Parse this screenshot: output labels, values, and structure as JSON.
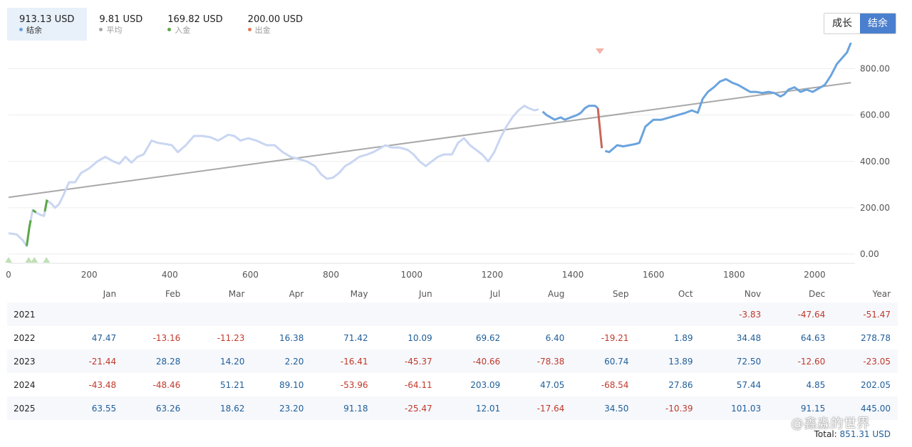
{
  "stats": [
    {
      "value": "913.13 USD",
      "label": "结余",
      "color": "#6aa3de"
    },
    {
      "value": "9.81 USD",
      "label": "平均",
      "color": "#a8a8a8"
    },
    {
      "value": "169.82 USD",
      "label": "入金",
      "color": "#5aa846"
    },
    {
      "value": "200.00 USD",
      "label": "出金",
      "color": "#e07a5a"
    }
  ],
  "toggle": {
    "growth_label": "成长",
    "balance_label": "结余"
  },
  "chart_data": {
    "type": "line",
    "xlim": [
      0,
      2100
    ],
    "ylim": [
      -40,
      900
    ],
    "x_ticks": [
      0,
      200,
      400,
      600,
      800,
      1000,
      1200,
      1400,
      1600,
      1800,
      2000
    ],
    "y_ticks": [
      0,
      200,
      400,
      600,
      800
    ],
    "y_tick_labels": [
      "0.00",
      "200.00",
      "400.00",
      "600.00",
      "800.00"
    ],
    "series": [
      {
        "name": "结余",
        "color": "#6aa3de",
        "faded_color": "#c9d6f2",
        "points": [
          [
            0,
            90
          ],
          [
            20,
            85
          ],
          [
            35,
            60
          ],
          [
            45,
            35
          ],
          [
            52,
            120
          ],
          [
            60,
            190
          ],
          [
            68,
            180
          ],
          [
            78,
            170
          ],
          [
            88,
            165
          ],
          [
            95,
            230
          ],
          [
            105,
            220
          ],
          [
            115,
            200
          ],
          [
            125,
            215
          ],
          [
            135,
            250
          ],
          [
            150,
            310
          ],
          [
            165,
            310
          ],
          [
            180,
            350
          ],
          [
            200,
            370
          ],
          [
            220,
            400
          ],
          [
            240,
            420
          ],
          [
            260,
            400
          ],
          [
            275,
            390
          ],
          [
            290,
            420
          ],
          [
            305,
            395
          ],
          [
            320,
            420
          ],
          [
            335,
            430
          ],
          [
            355,
            490
          ],
          [
            370,
            480
          ],
          [
            390,
            475
          ],
          [
            405,
            470
          ],
          [
            420,
            440
          ],
          [
            440,
            470
          ],
          [
            460,
            510
          ],
          [
            480,
            510
          ],
          [
            500,
            505
          ],
          [
            520,
            490
          ],
          [
            545,
            515
          ],
          [
            560,
            510
          ],
          [
            575,
            490
          ],
          [
            595,
            500
          ],
          [
            615,
            490
          ],
          [
            640,
            470
          ],
          [
            660,
            470
          ],
          [
            680,
            440
          ],
          [
            700,
            420
          ],
          [
            720,
            410
          ],
          [
            740,
            400
          ],
          [
            760,
            380
          ],
          [
            775,
            345
          ],
          [
            790,
            325
          ],
          [
            805,
            330
          ],
          [
            820,
            350
          ],
          [
            835,
            380
          ],
          [
            850,
            395
          ],
          [
            870,
            420
          ],
          [
            890,
            430
          ],
          [
            905,
            440
          ],
          [
            920,
            455
          ],
          [
            935,
            470
          ],
          [
            950,
            460
          ],
          [
            970,
            460
          ],
          [
            990,
            450
          ],
          [
            1005,
            430
          ],
          [
            1020,
            400
          ],
          [
            1035,
            380
          ],
          [
            1050,
            400
          ],
          [
            1065,
            420
          ],
          [
            1080,
            430
          ],
          [
            1100,
            430
          ],
          [
            1115,
            480
          ],
          [
            1130,
            500
          ],
          [
            1145,
            470
          ],
          [
            1160,
            450
          ],
          [
            1175,
            430
          ],
          [
            1190,
            400
          ],
          [
            1205,
            440
          ],
          [
            1220,
            500
          ],
          [
            1235,
            550
          ],
          [
            1250,
            590
          ],
          [
            1265,
            620
          ],
          [
            1280,
            640
          ],
          [
            1290,
            630
          ],
          [
            1305,
            620
          ],
          [
            1315,
            625
          ],
          [
            1325,
            615
          ],
          [
            1335,
            600
          ],
          [
            1345,
            590
          ],
          [
            1355,
            580
          ],
          [
            1370,
            590
          ],
          [
            1380,
            580
          ],
          [
            1395,
            590
          ],
          [
            1410,
            600
          ],
          [
            1420,
            610
          ],
          [
            1430,
            630
          ],
          [
            1440,
            640
          ],
          [
            1448,
            640
          ],
          [
            1455,
            640
          ],
          [
            1462,
            630
          ],
          [
            1470,
            460
          ],
          [
            1480,
            445
          ],
          [
            1490,
            440
          ],
          [
            1500,
            455
          ],
          [
            1510,
            470
          ],
          [
            1525,
            465
          ],
          [
            1540,
            470
          ],
          [
            1555,
            475
          ],
          [
            1565,
            480
          ],
          [
            1580,
            550
          ],
          [
            1600,
            580
          ],
          [
            1620,
            580
          ],
          [
            1640,
            590
          ],
          [
            1660,
            600
          ],
          [
            1680,
            610
          ],
          [
            1695,
            620
          ],
          [
            1710,
            610
          ],
          [
            1722,
            670
          ],
          [
            1735,
            700
          ],
          [
            1750,
            720
          ],
          [
            1765,
            745
          ],
          [
            1780,
            755
          ],
          [
            1795,
            740
          ],
          [
            1810,
            730
          ],
          [
            1825,
            715
          ],
          [
            1840,
            700
          ],
          [
            1855,
            700
          ],
          [
            1870,
            695
          ],
          [
            1885,
            700
          ],
          [
            1900,
            695
          ],
          [
            1915,
            680
          ],
          [
            1925,
            690
          ],
          [
            1935,
            710
          ],
          [
            1950,
            720
          ],
          [
            1965,
            700
          ],
          [
            1980,
            710
          ],
          [
            1995,
            700
          ],
          [
            2010,
            715
          ],
          [
            2025,
            730
          ],
          [
            2040,
            770
          ],
          [
            2055,
            820
          ],
          [
            2070,
            850
          ],
          [
            2080,
            870
          ],
          [
            2090,
            913
          ]
        ]
      },
      {
        "name": "平均",
        "color": "#a8a8a8",
        "points": [
          [
            0,
            245
          ],
          [
            2090,
            740
          ]
        ]
      }
    ],
    "highlight_from_x": 1320,
    "deposits_x": [
      [
        45,
        55
      ],
      [
        60,
        68
      ],
      [
        90,
        98
      ]
    ],
    "withdrawal_x": [
      [
        1462,
        1472
      ]
    ],
    "month_headers": [
      "Jan",
      "Feb",
      "Mar",
      "Apr",
      "May",
      "Jun",
      "Jul",
      "Aug",
      "Sep",
      "Oct",
      "Nov",
      "Dec",
      "Year"
    ]
  },
  "table": {
    "rows": [
      {
        "year": "2021",
        "values": [
          "",
          "",
          "",
          "",
          "",
          "",
          "",
          "",
          "",
          "",
          "-3.83",
          "-47.64",
          "-51.47"
        ]
      },
      {
        "year": "2022",
        "values": [
          "47.47",
          "-13.16",
          "-11.23",
          "16.38",
          "71.42",
          "10.09",
          "69.62",
          "6.40",
          "-19.21",
          "1.89",
          "34.48",
          "64.63",
          "278.78"
        ]
      },
      {
        "year": "2023",
        "values": [
          "-21.44",
          "28.28",
          "14.20",
          "2.20",
          "-16.41",
          "-45.37",
          "-40.66",
          "-78.38",
          "60.74",
          "13.89",
          "72.50",
          "-12.60",
          "-23.05"
        ]
      },
      {
        "year": "2024",
        "values": [
          "-43.48",
          "-48.46",
          "51.21",
          "89.10",
          "-53.96",
          "-64.11",
          "203.09",
          "47.05",
          "-68.54",
          "27.86",
          "57.44",
          "4.85",
          "202.05"
        ]
      },
      {
        "year": "2025",
        "values": [
          "63.55",
          "63.26",
          "18.62",
          "23.20",
          "91.18",
          "-25.47",
          "12.01",
          "-17.64",
          "34.50",
          "-10.39",
          "101.03",
          "91.15",
          "445.00"
        ]
      }
    ],
    "total_label": "Total:",
    "total_value": "851.31 USD"
  },
  "watermark": "@鑫淼的世界"
}
